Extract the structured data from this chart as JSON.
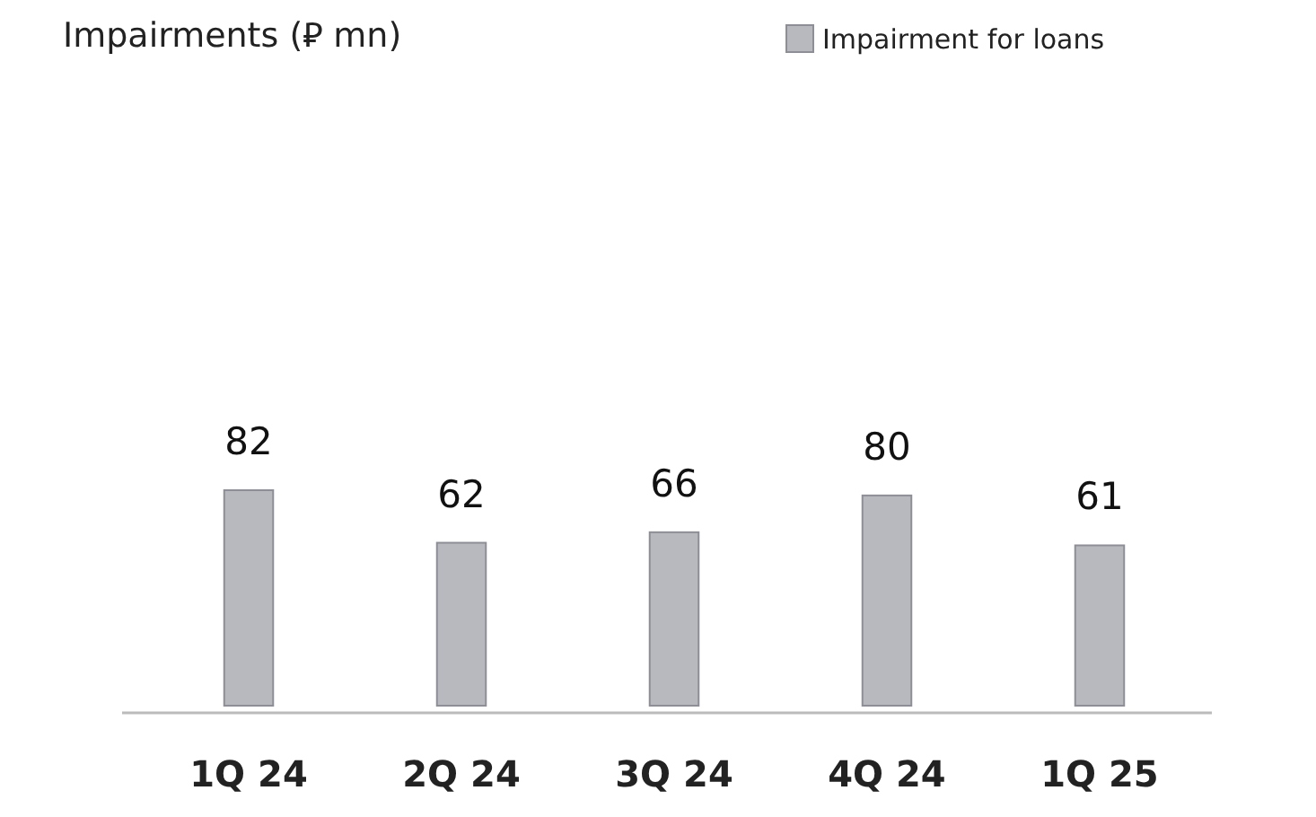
{
  "chart_data": {
    "type": "bar",
    "title": "Impairments (⃁ mn)",
    "categories": [
      "1Q 24",
      "2Q 24",
      "3Q 24",
      "4Q 24",
      "1Q 25"
    ],
    "series": [
      {
        "name": "Impairment for loans",
        "color": "#b8b9be",
        "values": [
          82,
          62,
          66,
          80,
          61
        ]
      }
    ],
    "data_labels": true,
    "legend": "top right"
  }
}
